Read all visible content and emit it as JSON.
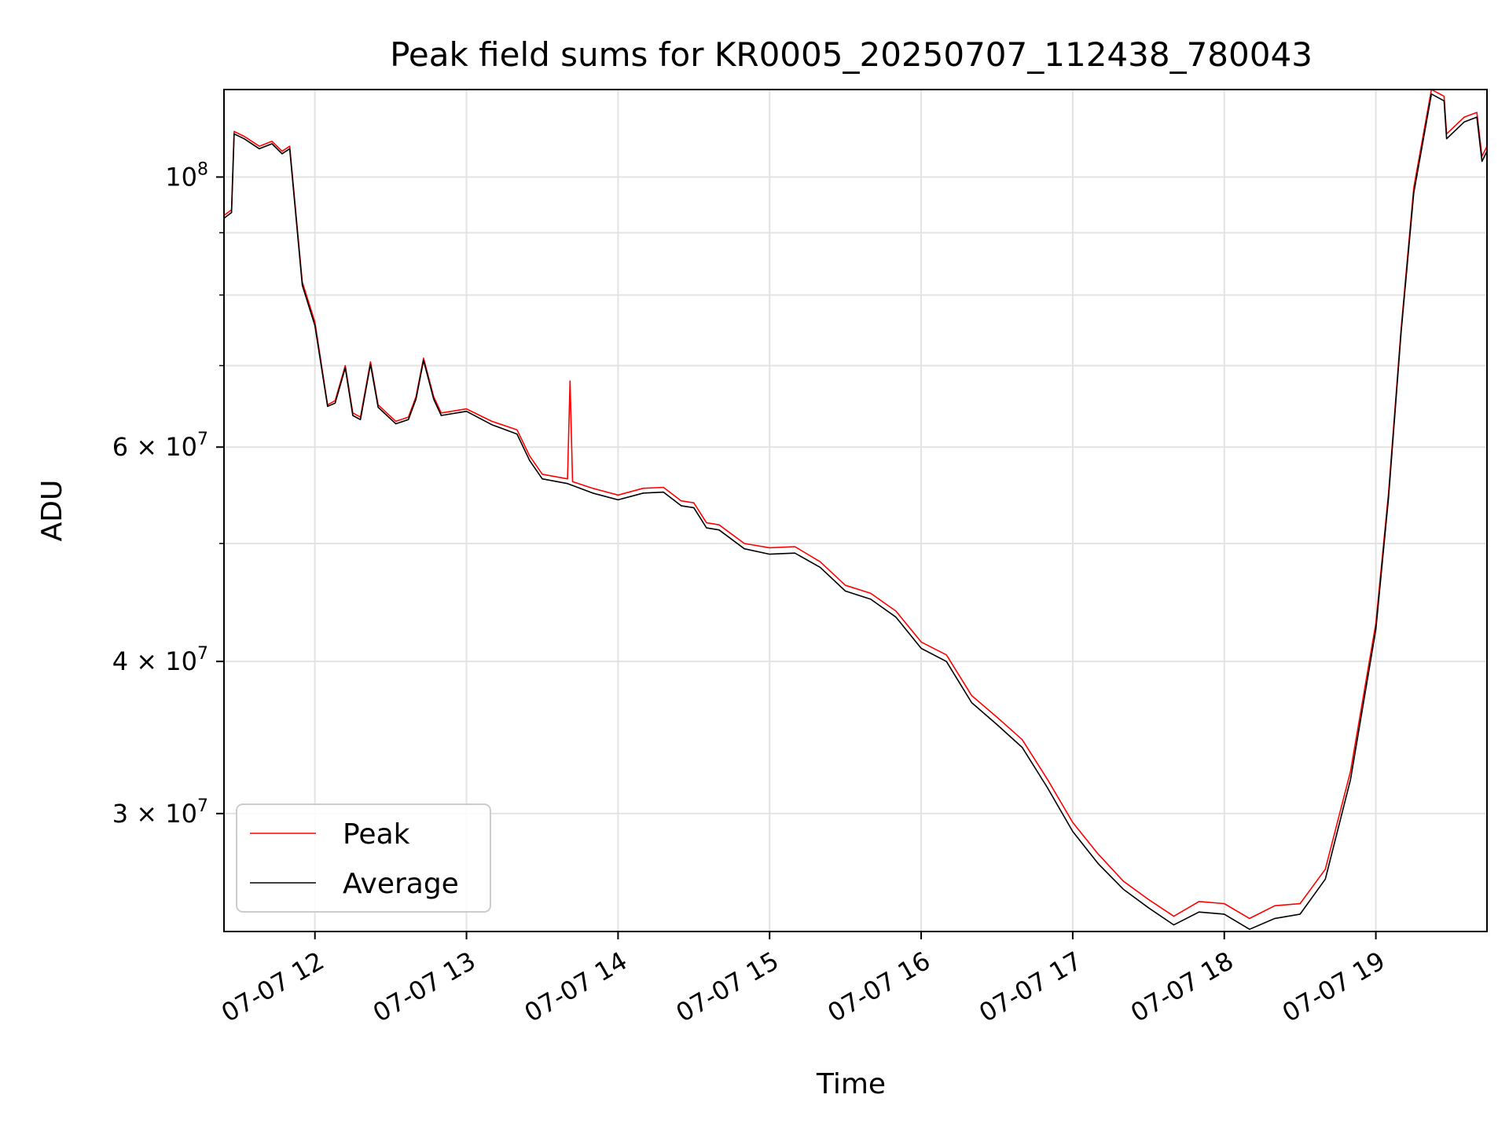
{
  "chart_data": {
    "type": "line",
    "title": "Peak field sums for KR0005_20250707_112438_780043",
    "xlabel": "Time",
    "ylabel": "ADU",
    "y_scale": "log",
    "ylim": [
      24000000,
      118000000
    ],
    "xlim": [
      "2025-07-07 11:24",
      "2025-07-07 19:44"
    ],
    "grid": true,
    "legend_position": "lower-left",
    "x_ticks": [
      {
        "time": "2025-07-07 12:00",
        "label": "07-07 12"
      },
      {
        "time": "2025-07-07 13:00",
        "label": "07-07 13"
      },
      {
        "time": "2025-07-07 14:00",
        "label": "07-07 14"
      },
      {
        "time": "2025-07-07 15:00",
        "label": "07-07 15"
      },
      {
        "time": "2025-07-07 16:00",
        "label": "07-07 16"
      },
      {
        "time": "2025-07-07 17:00",
        "label": "07-07 17"
      },
      {
        "time": "2025-07-07 18:00",
        "label": "07-07 18"
      },
      {
        "time": "2025-07-07 19:00",
        "label": "07-07 19"
      }
    ],
    "y_major_ticks": [
      {
        "value": 30000000,
        "base": "3 × 10",
        "exp": "7"
      },
      {
        "value": 40000000,
        "base": "4 × 10",
        "exp": "7"
      },
      {
        "value": 60000000,
        "base": "6 × 10",
        "exp": "7"
      },
      {
        "value": 100000000,
        "base": "10",
        "exp": "8"
      }
    ],
    "y_minor_ticks": [
      50000000,
      70000000,
      80000000,
      90000000
    ],
    "series": [
      {
        "name": "Peak",
        "color": "#ff0000",
        "points": [
          [
            "2025-07-07 11:24",
            93000000
          ],
          [
            "2025-07-07 11:27",
            94000000
          ],
          [
            "2025-07-07 11:28",
            109000000
          ],
          [
            "2025-07-07 11:32",
            108000000
          ],
          [
            "2025-07-07 11:38",
            106000000
          ],
          [
            "2025-07-07 11:43",
            107000000
          ],
          [
            "2025-07-07 11:47",
            105000000
          ],
          [
            "2025-07-07 11:50",
            106000000
          ],
          [
            "2025-07-07 11:55",
            82000000
          ],
          [
            "2025-07-07 12:00",
            76000000
          ],
          [
            "2025-07-07 12:05",
            65000000
          ],
          [
            "2025-07-07 12:08",
            65500000
          ],
          [
            "2025-07-07 12:12",
            70000000
          ],
          [
            "2025-07-07 12:15",
            64000000
          ],
          [
            "2025-07-07 12:18",
            63500000
          ],
          [
            "2025-07-07 12:22",
            70500000
          ],
          [
            "2025-07-07 12:25",
            65000000
          ],
          [
            "2025-07-07 12:32",
            63000000
          ],
          [
            "2025-07-07 12:37",
            63500000
          ],
          [
            "2025-07-07 12:40",
            66000000
          ],
          [
            "2025-07-07 12:43",
            71000000
          ],
          [
            "2025-07-07 12:47",
            66000000
          ],
          [
            "2025-07-07 12:50",
            64000000
          ],
          [
            "2025-07-07 13:00",
            64500000
          ],
          [
            "2025-07-07 13:10",
            63000000
          ],
          [
            "2025-07-07 13:20",
            62000000
          ],
          [
            "2025-07-07 13:25",
            59000000
          ],
          [
            "2025-07-07 13:30",
            57000000
          ],
          [
            "2025-07-07 13:40",
            56500000
          ],
          [
            "2025-07-07 13:41",
            68000000
          ],
          [
            "2025-07-07 13:42",
            56200000
          ],
          [
            "2025-07-07 13:50",
            55500000
          ],
          [
            "2025-07-07 14:00",
            54800000
          ],
          [
            "2025-07-07 14:10",
            55500000
          ],
          [
            "2025-07-07 14:18",
            55600000
          ],
          [
            "2025-07-07 14:25",
            54200000
          ],
          [
            "2025-07-07 14:30",
            54000000
          ],
          [
            "2025-07-07 14:35",
            52000000
          ],
          [
            "2025-07-07 14:40",
            51800000
          ],
          [
            "2025-07-07 14:50",
            50000000
          ],
          [
            "2025-07-07 15:00",
            49600000
          ],
          [
            "2025-07-07 15:10",
            49700000
          ],
          [
            "2025-07-07 15:20",
            48300000
          ],
          [
            "2025-07-07 15:30",
            46200000
          ],
          [
            "2025-07-07 15:40",
            45500000
          ],
          [
            "2025-07-07 15:50",
            44000000
          ],
          [
            "2025-07-07 16:00",
            41500000
          ],
          [
            "2025-07-07 16:10",
            40500000
          ],
          [
            "2025-07-07 16:20",
            37500000
          ],
          [
            "2025-07-07 16:30",
            36000000
          ],
          [
            "2025-07-07 16:40",
            34500000
          ],
          [
            "2025-07-07 16:50",
            32000000
          ],
          [
            "2025-07-07 17:00",
            29500000
          ],
          [
            "2025-07-07 17:10",
            27800000
          ],
          [
            "2025-07-07 17:20",
            26400000
          ],
          [
            "2025-07-07 17:30",
            25500000
          ],
          [
            "2025-07-07 17:40",
            24700000
          ],
          [
            "2025-07-07 17:50",
            25400000
          ],
          [
            "2025-07-07 18:00",
            25300000
          ],
          [
            "2025-07-07 18:10",
            24600000
          ],
          [
            "2025-07-07 18:20",
            25200000
          ],
          [
            "2025-07-07 18:30",
            25300000
          ],
          [
            "2025-07-07 18:40",
            27000000
          ],
          [
            "2025-07-07 18:50",
            32500000
          ],
          [
            "2025-07-07 19:00",
            43000000
          ],
          [
            "2025-07-07 19:05",
            55000000
          ],
          [
            "2025-07-07 19:10",
            75000000
          ],
          [
            "2025-07-07 19:15",
            98000000
          ],
          [
            "2025-07-07 19:22",
            118000000
          ],
          [
            "2025-07-07 19:27",
            116500000
          ],
          [
            "2025-07-07 19:28",
            108500000
          ],
          [
            "2025-07-07 19:35",
            112000000
          ],
          [
            "2025-07-07 19:40",
            113000000
          ],
          [
            "2025-07-07 19:42",
            104000000
          ],
          [
            "2025-07-07 19:44",
            106000000
          ]
        ]
      },
      {
        "name": "Average",
        "color": "#000000",
        "points": [
          [
            "2025-07-07 11:24",
            92500000
          ],
          [
            "2025-07-07 11:27",
            93500000
          ],
          [
            "2025-07-07 11:28",
            108500000
          ],
          [
            "2025-07-07 11:32",
            107500000
          ],
          [
            "2025-07-07 11:38",
            105500000
          ],
          [
            "2025-07-07 11:43",
            106500000
          ],
          [
            "2025-07-07 11:47",
            104500000
          ],
          [
            "2025-07-07 11:50",
            105500000
          ],
          [
            "2025-07-07 11:55",
            81500000
          ],
          [
            "2025-07-07 12:00",
            75500000
          ],
          [
            "2025-07-07 12:05",
            64800000
          ],
          [
            "2025-07-07 12:08",
            65200000
          ],
          [
            "2025-07-07 12:12",
            69700000
          ],
          [
            "2025-07-07 12:15",
            63700000
          ],
          [
            "2025-07-07 12:18",
            63200000
          ],
          [
            "2025-07-07 12:22",
            70200000
          ],
          [
            "2025-07-07 12:25",
            64700000
          ],
          [
            "2025-07-07 12:32",
            62700000
          ],
          [
            "2025-07-07 12:37",
            63200000
          ],
          [
            "2025-07-07 12:40",
            65700000
          ],
          [
            "2025-07-07 12:43",
            70700000
          ],
          [
            "2025-07-07 12:47",
            65700000
          ],
          [
            "2025-07-07 12:50",
            63700000
          ],
          [
            "2025-07-07 13:00",
            64200000
          ],
          [
            "2025-07-07 13:10",
            62600000
          ],
          [
            "2025-07-07 13:20",
            61500000
          ],
          [
            "2025-07-07 13:25",
            58500000
          ],
          [
            "2025-07-07 13:30",
            56500000
          ],
          [
            "2025-07-07 13:40",
            56000000
          ],
          [
            "2025-07-07 13:42",
            55800000
          ],
          [
            "2025-07-07 13:50",
            55000000
          ],
          [
            "2025-07-07 14:00",
            54300000
          ],
          [
            "2025-07-07 14:10",
            55000000
          ],
          [
            "2025-07-07 14:18",
            55100000
          ],
          [
            "2025-07-07 14:25",
            53700000
          ],
          [
            "2025-07-07 14:30",
            53500000
          ],
          [
            "2025-07-07 14:35",
            51500000
          ],
          [
            "2025-07-07 14:40",
            51300000
          ],
          [
            "2025-07-07 14:50",
            49500000
          ],
          [
            "2025-07-07 15:00",
            49000000
          ],
          [
            "2025-07-07 15:10",
            49100000
          ],
          [
            "2025-07-07 15:20",
            47800000
          ],
          [
            "2025-07-07 15:30",
            45700000
          ],
          [
            "2025-07-07 15:40",
            45000000
          ],
          [
            "2025-07-07 15:50",
            43500000
          ],
          [
            "2025-07-07 16:00",
            41000000
          ],
          [
            "2025-07-07 16:10",
            40000000
          ],
          [
            "2025-07-07 16:20",
            37000000
          ],
          [
            "2025-07-07 16:30",
            35500000
          ],
          [
            "2025-07-07 16:40",
            34000000
          ],
          [
            "2025-07-07 16:50",
            31500000
          ],
          [
            "2025-07-07 17:00",
            29000000
          ],
          [
            "2025-07-07 17:10",
            27300000
          ],
          [
            "2025-07-07 17:20",
            26000000
          ],
          [
            "2025-07-07 17:30",
            25100000
          ],
          [
            "2025-07-07 17:40",
            24300000
          ],
          [
            "2025-07-07 17:50",
            24900000
          ],
          [
            "2025-07-07 18:00",
            24800000
          ],
          [
            "2025-07-07 18:10",
            24100000
          ],
          [
            "2025-07-07 18:20",
            24600000
          ],
          [
            "2025-07-07 18:30",
            24800000
          ],
          [
            "2025-07-07 18:40",
            26500000
          ],
          [
            "2025-07-07 18:50",
            32000000
          ],
          [
            "2025-07-07 19:00",
            42500000
          ],
          [
            "2025-07-07 19:05",
            54500000
          ],
          [
            "2025-07-07 19:10",
            74500000
          ],
          [
            "2025-07-07 19:15",
            97000000
          ],
          [
            "2025-07-07 19:22",
            117000000
          ],
          [
            "2025-07-07 19:27",
            115500000
          ],
          [
            "2025-07-07 19:28",
            107500000
          ],
          [
            "2025-07-07 19:35",
            111000000
          ],
          [
            "2025-07-07 19:40",
            112000000
          ],
          [
            "2025-07-07 19:42",
            103000000
          ],
          [
            "2025-07-07 19:44",
            105000000
          ]
        ]
      }
    ]
  }
}
